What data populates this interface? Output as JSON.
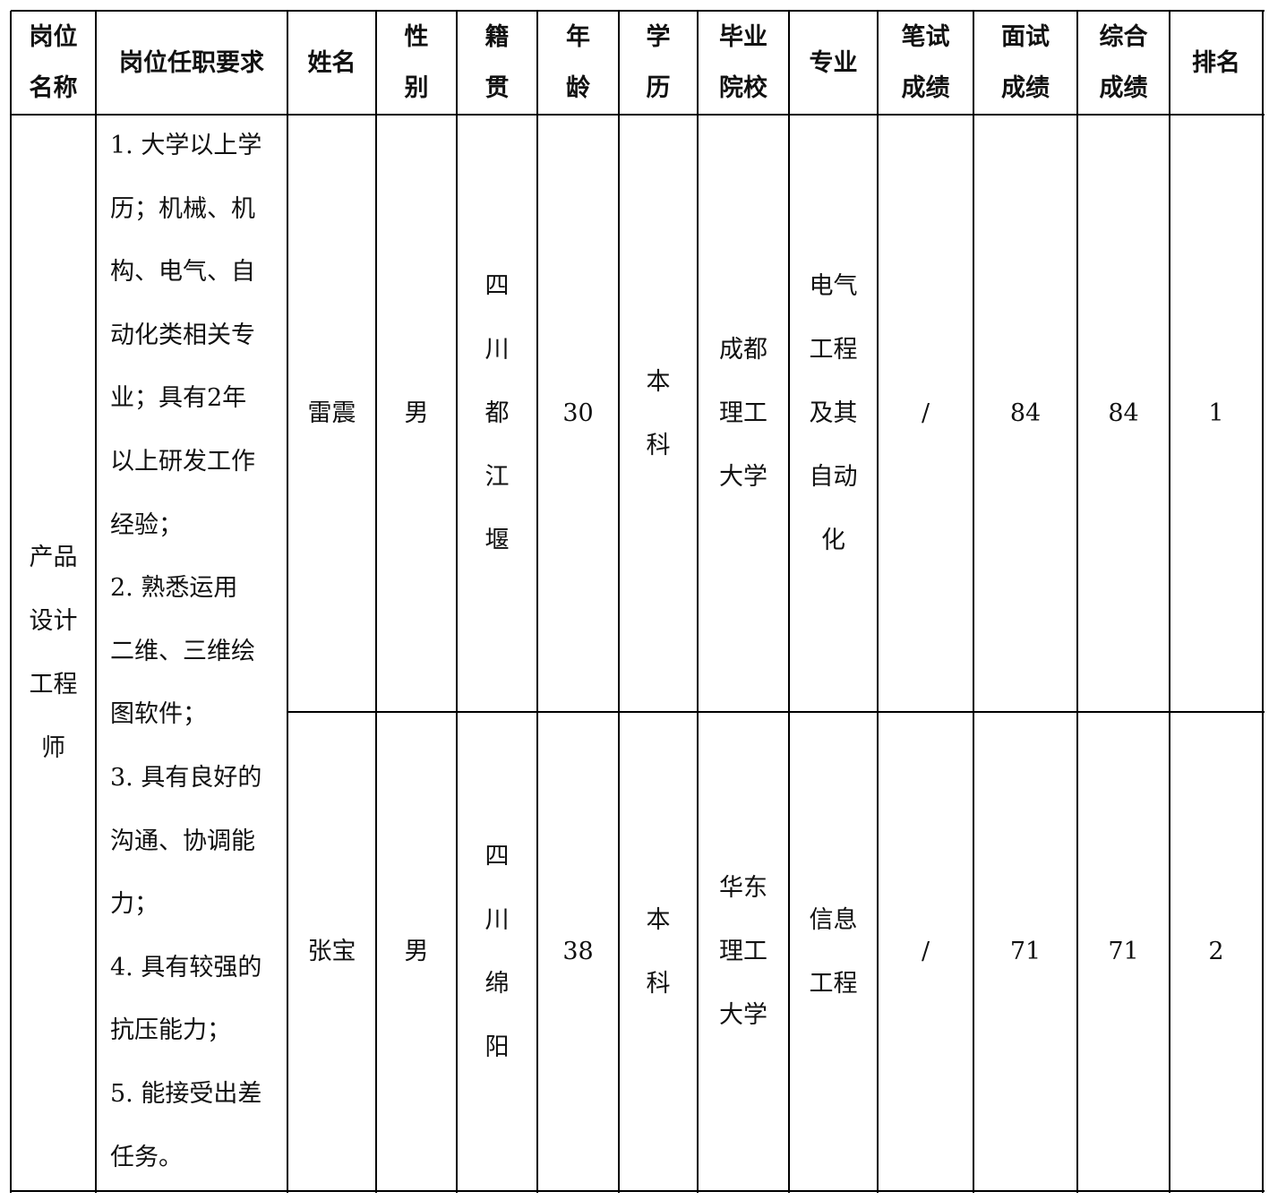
{
  "headers": [
    "岗位\n名称",
    "岗位任职要求",
    "姓名",
    "性\n别",
    "籍\n贯",
    "年\n龄",
    "学\n历",
    "毕业\n院校",
    "专业",
    "笔试\n成绩",
    "面试\n成绩",
    "综合\n成绩",
    "排名"
  ],
  "position": "产品\n设计\n工程\n师",
  "requirements": "1. 大学以上学\n历；机械、机\n构、电气、自\n动化类相关专\n业；具有2年\n以上研发工作\n经验；\n2.  熟悉运用\n二维、三维绘\n图软件；\n3. 具有良好的\n沟通、协调能\n力；\n4. 具有较强的\n抗压能力；\n5. 能接受出差\n任务。",
  "rows": [
    {
      "name": "雷震",
      "gender": "男",
      "origin": "四\n川\n都\n江\n堰",
      "age": "30",
      "education": "本\n科",
      "school": "成都\n理工\n大学",
      "major": "电气\n工程\n及其\n自动\n化",
      "written": "/",
      "interview": "84",
      "total": "84",
      "rank": "1"
    },
    {
      "name": "张宝",
      "gender": "男",
      "origin": "四\n川\n绵\n阳",
      "age": "38",
      "education": "本\n科",
      "school": "华东\n理工\n大学",
      "major": "信息\n工程",
      "written": "/",
      "interview": "71",
      "total": "71",
      "rank": "2"
    }
  ]
}
